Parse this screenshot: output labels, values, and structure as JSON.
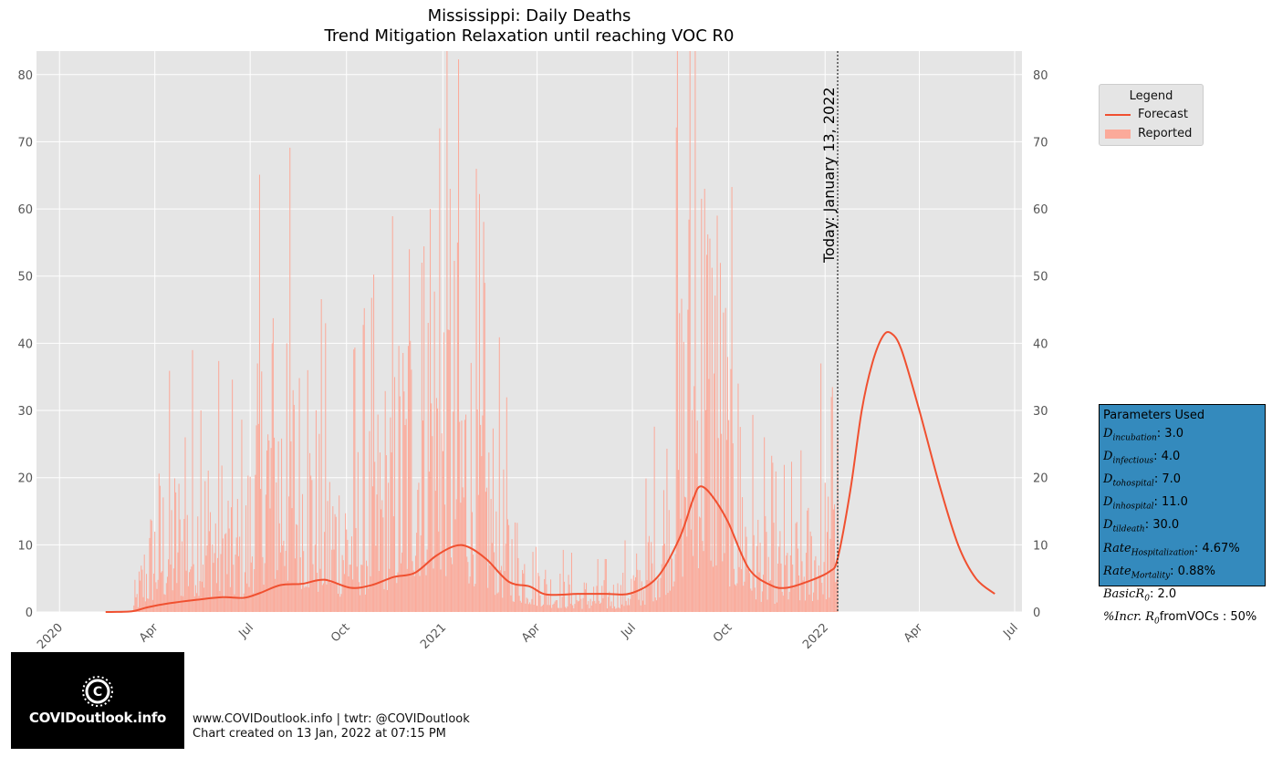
{
  "title": "Mississippi: Daily Deaths",
  "subtitle": "Trend Mitigation Relaxation until reaching VOC R0",
  "today_label": "Today: January 13, 2022",
  "legend": {
    "title": "Legend",
    "forecast_label": "Forecast",
    "reported_label": "Reported"
  },
  "params": {
    "heading": "Parameters Used",
    "items": [
      {
        "name": "D",
        "sub": "incubation",
        "value": ": 3.0"
      },
      {
        "name": "D",
        "sub": "infectious",
        "value": ": 4.0"
      },
      {
        "name": "D",
        "sub": "tohospital",
        "value": ": 7.0"
      },
      {
        "name": "D",
        "sub": "inhospital",
        "value": ": 11.0"
      },
      {
        "name": "D",
        "sub": "tildeath",
        "value": ": 30.0"
      },
      {
        "name": "Rate",
        "sub": "Hospitalization",
        "value": ": 4.67%"
      },
      {
        "name": "Rate",
        "sub": "Mortality",
        "value": ": 0.88%"
      },
      {
        "name": "BasicR",
        "sub": "0",
        "value": ": 2.0"
      },
      {
        "name": "%Incr. R",
        "sub": "0",
        "value": "fromVOCs : 50%"
      }
    ]
  },
  "logo_text": "COVIDoutlook.info",
  "footer": {
    "line1": "www.COVIDoutlook.info | twtr: @COVIDoutlook",
    "line2": "Chart created on 13 Jan, 2022 at 07:15 PM"
  },
  "colors": {
    "forecast": "#f05030",
    "reported": "#fbaa9a",
    "plot_bg": "#e5e5e5",
    "params_bg": "#348abd"
  },
  "chart_data": {
    "type": "bar+line",
    "y_ticks": [
      0,
      10,
      20,
      30,
      40,
      50,
      60,
      70,
      80
    ],
    "ylim": [
      0,
      83.5
    ],
    "x_ticks": [
      {
        "date": "2020-01-01",
        "label": "2020"
      },
      {
        "date": "2020-04-01",
        "label": "Apr"
      },
      {
        "date": "2020-07-01",
        "label": "Jul"
      },
      {
        "date": "2020-10-01",
        "label": "Oct"
      },
      {
        "date": "2021-01-01",
        "label": "2021"
      },
      {
        "date": "2021-04-01",
        "label": "Apr"
      },
      {
        "date": "2021-07-01",
        "label": "Jul"
      },
      {
        "date": "2021-10-01",
        "label": "Oct"
      },
      {
        "date": "2022-01-01",
        "label": "2022"
      },
      {
        "date": "2022-04-01",
        "label": "Apr"
      },
      {
        "date": "2022-07-01",
        "label": "Jul"
      }
    ],
    "xlim": [
      "2019-12-10",
      "2022-07-08"
    ],
    "today": "2022-01-13",
    "forecast": {
      "name": "Forecast",
      "points": [
        [
          "2020-02-14",
          0
        ],
        [
          "2020-03-10",
          0.1
        ],
        [
          "2020-03-25",
          0.7
        ],
        [
          "2020-04-15",
          1.3
        ],
        [
          "2020-05-10",
          1.8
        ],
        [
          "2020-06-05",
          2.2
        ],
        [
          "2020-06-25",
          2.1
        ],
        [
          "2020-07-10",
          2.8
        ],
        [
          "2020-07-30",
          4.0
        ],
        [
          "2020-08-20",
          4.2
        ],
        [
          "2020-09-10",
          4.8
        ],
        [
          "2020-10-05",
          3.6
        ],
        [
          "2020-10-25",
          4.0
        ],
        [
          "2020-11-15",
          5.2
        ],
        [
          "2020-12-05",
          5.8
        ],
        [
          "2020-12-25",
          8.3
        ],
        [
          "2021-01-12",
          9.8
        ],
        [
          "2021-01-25",
          9.7
        ],
        [
          "2021-02-12",
          7.8
        ],
        [
          "2021-03-05",
          4.5
        ],
        [
          "2021-03-25",
          3.8
        ],
        [
          "2021-04-10",
          2.6
        ],
        [
          "2021-05-10",
          2.7
        ],
        [
          "2021-06-05",
          2.7
        ],
        [
          "2021-06-30",
          2.8
        ],
        [
          "2021-07-25",
          5.2
        ],
        [
          "2021-08-15",
          11.0
        ],
        [
          "2021-08-28",
          16.8
        ],
        [
          "2021-09-04",
          18.7
        ],
        [
          "2021-09-15",
          17.3
        ],
        [
          "2021-09-30",
          13.5
        ],
        [
          "2021-10-20",
          6.5
        ],
        [
          "2021-11-10",
          4.0
        ],
        [
          "2021-11-25",
          3.6
        ],
        [
          "2021-12-15",
          4.5
        ],
        [
          "2022-01-05",
          6.0
        ],
        [
          "2022-01-13",
          8.0
        ],
        [
          "2022-01-25",
          18.0
        ],
        [
          "2022-02-05",
          30.0
        ],
        [
          "2022-02-15",
          37.0
        ],
        [
          "2022-02-25",
          41.0
        ],
        [
          "2022-03-05",
          41.5
        ],
        [
          "2022-03-15",
          39.0
        ],
        [
          "2022-04-01",
          30.0
        ],
        [
          "2022-04-20",
          19.0
        ],
        [
          "2022-05-08",
          10.0
        ],
        [
          "2022-05-25",
          5.0
        ],
        [
          "2022-06-12",
          2.7
        ]
      ]
    },
    "reported": {
      "name": "Reported",
      "envelope": [
        [
          "2020-03-10",
          0
        ],
        [
          "2020-03-22",
          7
        ],
        [
          "2020-04-05",
          13
        ],
        [
          "2020-04-25",
          14
        ],
        [
          "2020-05-15",
          16
        ],
        [
          "2020-06-05",
          14
        ],
        [
          "2020-06-25",
          11
        ],
        [
          "2020-07-15",
          28
        ],
        [
          "2020-08-05",
          27
        ],
        [
          "2020-08-25",
          21
        ],
        [
          "2020-09-15",
          15
        ],
        [
          "2020-10-05",
          15
        ],
        [
          "2020-10-25",
          18
        ],
        [
          "2020-11-15",
          23
        ],
        [
          "2020-12-05",
          33
        ],
        [
          "2020-12-25",
          38
        ],
        [
          "2021-01-10",
          33
        ],
        [
          "2021-01-25",
          28
        ],
        [
          "2021-02-15",
          19
        ],
        [
          "2021-03-05",
          11
        ],
        [
          "2021-03-25",
          7
        ],
        [
          "2021-04-15",
          4
        ],
        [
          "2021-05-15",
          3
        ],
        [
          "2021-06-15",
          3
        ],
        [
          "2021-07-10",
          6
        ],
        [
          "2021-07-30",
          14
        ],
        [
          "2021-08-20",
          35
        ],
        [
          "2021-09-05",
          45
        ],
        [
          "2021-09-20",
          38
        ],
        [
          "2021-10-05",
          22
        ],
        [
          "2021-10-25",
          11
        ],
        [
          "2021-11-15",
          8
        ],
        [
          "2021-12-10",
          9
        ],
        [
          "2022-01-01",
          12
        ],
        [
          "2022-01-13",
          14
        ]
      ],
      "spikes": [
        [
          "2020-04-30",
          26
        ],
        [
          "2020-05-15",
          30
        ],
        [
          "2020-07-08",
          37
        ],
        [
          "2020-07-22",
          40
        ],
        [
          "2020-08-05",
          40
        ],
        [
          "2020-08-25",
          36
        ],
        [
          "2020-11-30",
          54
        ],
        [
          "2020-12-12",
          52
        ],
        [
          "2020-12-20",
          60
        ],
        [
          "2020-12-29",
          72
        ],
        [
          "2021-01-08",
          63
        ],
        [
          "2021-01-15",
          55
        ],
        [
          "2021-02-10",
          49
        ],
        [
          "2021-08-13",
          84
        ],
        [
          "2021-08-25",
          84
        ],
        [
          "2021-08-30",
          84
        ],
        [
          "2021-09-08",
          63
        ],
        [
          "2021-09-20",
          59
        ],
        [
          "2021-10-10",
          34
        ],
        [
          "2021-12-28",
          37
        ],
        [
          "2022-01-07",
          32
        ],
        [
          "2022-01-13",
          26
        ]
      ]
    }
  }
}
